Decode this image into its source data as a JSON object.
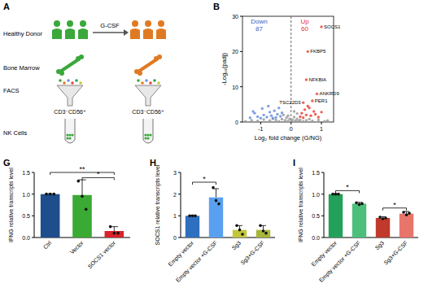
{
  "diagram": {
    "label": "A",
    "donor_label": "Healthy Donor",
    "treatment": "G-CSF",
    "tissue": "Bone Marrow",
    "method": "FACS",
    "gates": [
      "CD3⁻CD56⁺",
      "CD3⁻CD56⁺"
    ],
    "result": "NK Cells"
  },
  "chart_data": [
    {
      "type": "scatter",
      "title": "B",
      "xlabel": "Log₂ fold change (G/NG)",
      "ylabel": "-Log₁₀(padj)",
      "xlim": [
        -1.6,
        1.4
      ],
      "ylim": [
        0,
        30
      ],
      "xticks": [
        -1,
        0,
        1
      ],
      "yticks": [
        0,
        10,
        20,
        30
      ],
      "vline": 0,
      "series": [
        {
          "color": "#9a9a9a",
          "x": [
            -1.5,
            -1.3,
            -1.1,
            -0.9,
            -0.7,
            -0.5,
            -0.4,
            -0.3,
            -0.2,
            -0.15,
            -0.1,
            -0.05,
            0,
            0.05,
            0.1,
            0.15,
            0.2,
            0.25,
            0.3,
            0.4,
            0.5,
            0.7,
            0.9,
            1.1,
            1.2,
            -0.25,
            0.2,
            -0.1,
            0.1,
            -0.6,
            0.6
          ],
          "values": [
            0.2,
            0.5,
            0.3,
            0.7,
            0.4,
            0.6,
            0.2,
            0.8,
            0.5,
            1.2,
            0.3,
            0.9,
            0.1,
            0.6,
            1.4,
            0.4,
            0.9,
            0.3,
            0.6,
            0.2,
            0.5,
            0.3,
            0.6,
            0.2,
            0.4,
            2.0,
            2.4,
            1.8,
            3.0,
            0.9,
            0.8
          ]
        },
        {
          "color": "#6b8fe0",
          "x": [
            -1.35,
            -1.2,
            -1.1,
            -0.95,
            -0.9,
            -0.8,
            -0.7,
            -0.65,
            -0.55,
            -0.5,
            -0.45,
            -0.4,
            -0.35,
            -0.3,
            -1.0,
            -0.6,
            -0.75,
            -1.25
          ],
          "values": [
            1.2,
            2.5,
            1.5,
            3.8,
            2.0,
            1.4,
            2.8,
            1.8,
            3.2,
            1.3,
            2.2,
            4.0,
            1.6,
            2.6,
            1.1,
            1.1,
            4.5,
            3.0
          ]
        },
        {
          "color": "#e8453c",
          "x": [
            0.3,
            0.35,
            0.4,
            0.45,
            0.5,
            0.55,
            0.6,
            0.65,
            0.7,
            0.75,
            0.8,
            0.9,
            1.0,
            0.5,
            0.55,
            1.0,
            0.4,
            0.85
          ],
          "values": [
            1.5,
            2.5,
            1.2,
            3.5,
            2.0,
            4.5,
            4.0,
            1.8,
            6.0,
            3.0,
            2.2,
            1.4,
            2.8,
            12,
            20,
            27,
            5.5,
            8
          ]
        }
      ],
      "annotations": [
        {
          "text": "Down",
          "value": 87,
          "color": "#3a5fc8",
          "x": -1.05,
          "y": 28
        },
        {
          "text": "Up",
          "value": 60,
          "color": "#e0302a",
          "x": 0.45,
          "y": 28
        }
      ],
      "labels": [
        {
          "text": "SOCS1",
          "x": 1.0,
          "y": 27
        },
        {
          "text": "FKBP5",
          "x": 0.55,
          "y": 20
        },
        {
          "text": "NFKBIA",
          "x": 0.5,
          "y": 12
        },
        {
          "text": "ANKRD9",
          "x": 0.85,
          "y": 8
        },
        {
          "text": "TSC22D3",
          "x": 0.4,
          "y": 5.5
        },
        {
          "text": "PER1",
          "x": 0.7,
          "y": 6
        }
      ]
    },
    {
      "type": "bar",
      "title": "G",
      "ylabel": "IFNG relative transcripts level",
      "categories": [
        "Ctrl",
        "Vector",
        "SOCS1 vector"
      ],
      "values": [
        1.0,
        0.98,
        0.15
      ],
      "errors": [
        0.01,
        0.35,
        0.1
      ],
      "colors": [
        "#1f4e8c",
        "#3aaa35",
        "#d9232a"
      ],
      "points": [
        [
          1,
          1,
          1
        ],
        [
          1.3,
          0.95,
          0.65
        ],
        [
          0.25,
          0.1,
          0.1
        ]
      ],
      "ylim": [
        0,
        1.5
      ],
      "yticks": [
        {
          "value": 0,
          "label": "0.0"
        },
        0.5,
        {
          "value": 1,
          "label": "1.0"
        },
        1.5
      ],
      "annotations": [
        {
          "text": "**",
          "from": 0,
          "to": 2,
          "y": 1.5
        },
        {
          "text": "*",
          "from": 1,
          "to": 2,
          "y": 1.38
        }
      ]
    },
    {
      "type": "bar",
      "title": "H",
      "ylabel": "SOCS1 relative transcripts level",
      "categories": [
        "Empty vector",
        "Empty vector +G-CSF",
        "Sg3",
        "Sg3+G-CSF"
      ],
      "values": [
        1.0,
        1.85,
        0.35,
        0.35
      ],
      "errors": [
        0.02,
        0.4,
        0.2,
        0.2
      ],
      "colors": [
        "#2e6fc0",
        "#5aa0f0",
        "#c3c63a",
        "#a9b53a"
      ],
      "points": [
        [
          1,
          1,
          1
        ],
        [
          2.3,
          1.7,
          1.55
        ],
        [
          0.55,
          0.35,
          0.15
        ],
        [
          0.55,
          0.3,
          0.2
        ]
      ],
      "ylim": [
        0,
        3
      ],
      "yticks": [
        0,
        1,
        2,
        3
      ],
      "annotations": [
        {
          "text": "*",
          "from": 0,
          "to": 1,
          "y": 2.55
        }
      ]
    },
    {
      "type": "bar",
      "title": "I",
      "ylabel": "IFNG relative transcripts level",
      "categories": [
        "Empty vector",
        "Empty vector +G-CSF",
        "Sg3",
        "Sg3+G-CSF"
      ],
      "values": [
        1.0,
        0.78,
        0.45,
        0.55
      ],
      "errors": [
        0.005,
        0.03,
        0.03,
        0.05
      ],
      "colors": [
        "#23a05a",
        "#4dbf7a",
        "#c0392b",
        "#e8756a"
      ],
      "points": [
        [
          1,
          1,
          1
        ],
        [
          0.8,
          0.76,
          0.78
        ],
        [
          0.47,
          0.43,
          0.45
        ],
        [
          0.58,
          0.52,
          0.56
        ]
      ],
      "ylim": [
        0,
        1.5
      ],
      "yticks": [
        {
          "value": 0,
          "label": "0.0"
        },
        0.5,
        {
          "value": 1,
          "label": "1.0"
        },
        1.5
      ],
      "annotations": [
        {
          "text": "*",
          "from": 0,
          "to": 1,
          "y": 1.08
        },
        {
          "text": "*",
          "from": 2,
          "to": 3,
          "y": 0.68
        }
      ]
    }
  ]
}
